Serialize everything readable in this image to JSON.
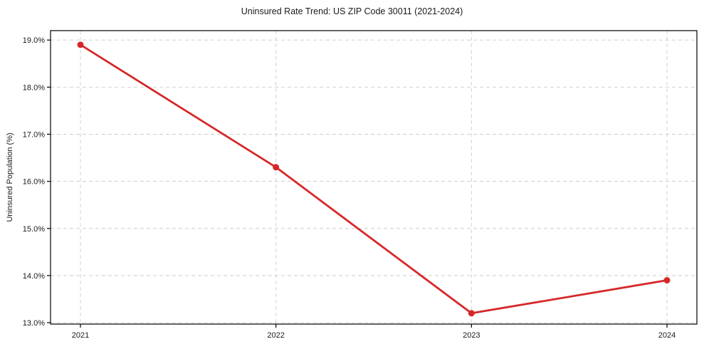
{
  "figure": {
    "background": "#ffffff"
  },
  "chart_data": {
    "type": "line",
    "title": "Uninsured Rate Trend: US ZIP Code 30011 (2021-2024)",
    "xlabel": "",
    "ylabel": "Uninsured Population (%)",
    "categories": [
      "2021",
      "2022",
      "2023",
      "2024"
    ],
    "values": [
      18.9,
      16.3,
      13.2,
      13.9
    ],
    "ylim": [
      12.97,
      19.2
    ],
    "yticks": [
      13,
      14,
      15,
      16,
      17,
      18,
      19
    ],
    "ytick_labels": [
      "13.0%",
      "14.0%",
      "15.0%",
      "16.0%",
      "17.0%",
      "18.0%",
      "19.0%"
    ],
    "grid": true,
    "grid_style": "dashed",
    "legend_position": "none",
    "line_color": "#d62728",
    "marker": "circle",
    "marker_color": "#d62728",
    "grid_color": "#cccccc",
    "axis_color": "#000000",
    "text_color": "#1a1a1a"
  }
}
